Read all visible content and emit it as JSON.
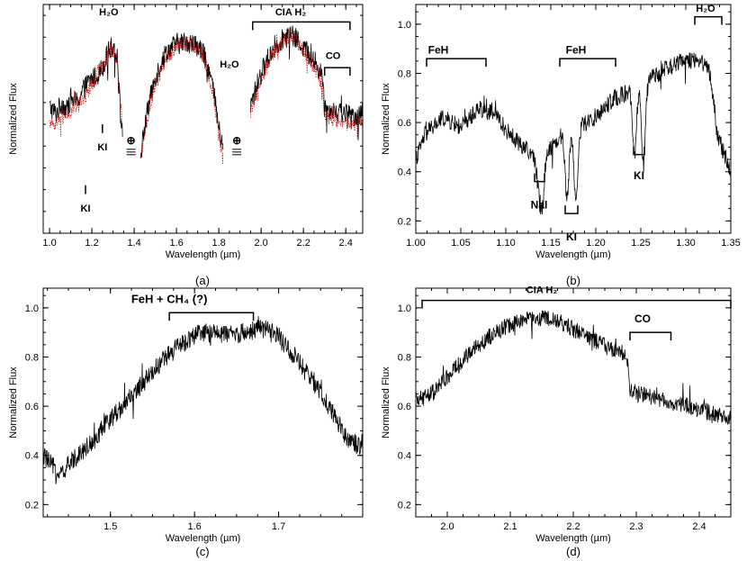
{
  "figure": {
    "colors": {
      "observed": "#000000",
      "model": "#d00000"
    }
  },
  "chart_data": [
    {
      "id": "a",
      "type": "line",
      "panel_label": "(a)",
      "xlabel": "Wavelength (µm)",
      "ylabel": "Normalized Flux",
      "xlim": [
        0.97,
        2.48
      ],
      "ylim": [
        0.0,
        1.05
      ],
      "y_tick_labels": false,
      "xticks": [
        1.0,
        1.2,
        1.4,
        1.6,
        1.8,
        2.0,
        2.2,
        2.4
      ],
      "xtick_labels": [
        "1.0",
        "1.2",
        "1.4",
        "1.6",
        "1.8",
        "2.0",
        "2.2",
        "2.4"
      ],
      "segments": [
        [
          1.0,
          1.345
        ],
        [
          1.43,
          1.82
        ],
        [
          1.95,
          2.48
        ]
      ],
      "series": [
        {
          "name": "observed",
          "style": "solid",
          "knots": [
            [
              1.0,
              0.58
            ],
            [
              1.03,
              0.55
            ],
            [
              1.06,
              0.6
            ],
            [
              1.08,
              0.56
            ],
            [
              1.1,
              0.62
            ],
            [
              1.13,
              0.6
            ],
            [
              1.16,
              0.66
            ],
            [
              1.19,
              0.7
            ],
            [
              1.22,
              0.72
            ],
            [
              1.25,
              0.76
            ],
            [
              1.28,
              0.84
            ],
            [
              1.3,
              0.86
            ],
            [
              1.32,
              0.82
            ],
            [
              1.335,
              0.55
            ],
            [
              1.345,
              0.45
            ],
            [
              1.43,
              0.35
            ],
            [
              1.46,
              0.55
            ],
            [
              1.5,
              0.72
            ],
            [
              1.55,
              0.83
            ],
            [
              1.6,
              0.87
            ],
            [
              1.65,
              0.88
            ],
            [
              1.7,
              0.86
            ],
            [
              1.74,
              0.8
            ],
            [
              1.77,
              0.68
            ],
            [
              1.8,
              0.48
            ],
            [
              1.82,
              0.38
            ],
            [
              1.95,
              0.58
            ],
            [
              1.98,
              0.68
            ],
            [
              2.02,
              0.78
            ],
            [
              2.06,
              0.85
            ],
            [
              2.1,
              0.89
            ],
            [
              2.14,
              0.91
            ],
            [
              2.18,
              0.88
            ],
            [
              2.22,
              0.83
            ],
            [
              2.26,
              0.77
            ],
            [
              2.29,
              0.72
            ],
            [
              2.3,
              0.58
            ],
            [
              2.35,
              0.56
            ],
            [
              2.4,
              0.55
            ],
            [
              2.44,
              0.54
            ],
            [
              2.48,
              0.55
            ]
          ],
          "noise": 0.05
        },
        {
          "name": "model",
          "style": "dotted",
          "knots": [
            [
              1.0,
              0.5
            ],
            [
              1.05,
              0.52
            ],
            [
              1.1,
              0.56
            ],
            [
              1.15,
              0.6
            ],
            [
              1.2,
              0.68
            ],
            [
              1.25,
              0.77
            ],
            [
              1.28,
              0.82
            ],
            [
              1.3,
              0.84
            ],
            [
              1.32,
              0.8
            ],
            [
              1.335,
              0.6
            ],
            [
              1.345,
              0.45
            ],
            [
              1.43,
              0.35
            ],
            [
              1.46,
              0.52
            ],
            [
              1.5,
              0.68
            ],
            [
              1.55,
              0.8
            ],
            [
              1.6,
              0.86
            ],
            [
              1.65,
              0.87
            ],
            [
              1.7,
              0.85
            ],
            [
              1.74,
              0.78
            ],
            [
              1.77,
              0.65
            ],
            [
              1.8,
              0.45
            ],
            [
              1.82,
              0.34
            ],
            [
              1.95,
              0.55
            ],
            [
              1.98,
              0.65
            ],
            [
              2.02,
              0.75
            ],
            [
              2.06,
              0.83
            ],
            [
              2.1,
              0.88
            ],
            [
              2.14,
              0.9
            ],
            [
              2.18,
              0.87
            ],
            [
              2.22,
              0.81
            ],
            [
              2.26,
              0.74
            ],
            [
              2.29,
              0.68
            ],
            [
              2.3,
              0.54
            ],
            [
              2.35,
              0.52
            ],
            [
              2.4,
              0.51
            ],
            [
              2.44,
              0.5
            ],
            [
              2.48,
              0.51
            ]
          ],
          "noise": 0.035
        }
      ],
      "annotations": [
        {
          "text": "H₂O",
          "x": 1.28,
          "y": 1.0,
          "size": 11,
          "type": "label"
        },
        {
          "text": "H₂O",
          "x": 1.85,
          "y": 0.76,
          "size": 11,
          "type": "label"
        },
        {
          "text": "CIA H₂",
          "x": 2.14,
          "y": 1.0,
          "size": 11,
          "type": "bracket",
          "x1": 1.96,
          "x2": 2.42,
          "yline": 0.97,
          "tick": "down"
        },
        {
          "text": "CO",
          "x": 2.34,
          "y": 0.8,
          "size": 11,
          "type": "bracket",
          "x1": 2.3,
          "x2": 2.42,
          "yline": 0.76,
          "tick": "down"
        },
        {
          "text": "KI",
          "x": 1.25,
          "y": 0.38,
          "size": 11,
          "type": "marker",
          "mx": 1.25,
          "my1": 0.46,
          "my2": 0.5
        },
        {
          "text": "KI",
          "x": 1.17,
          "y": 0.1,
          "size": 11,
          "type": "marker",
          "mx": 1.17,
          "my1": 0.18,
          "my2": 0.22
        },
        {
          "text": "⊕",
          "x": 1.385,
          "y": 0.41,
          "size": 12,
          "type": "telluric"
        },
        {
          "text": "⊕",
          "x": 1.885,
          "y": 0.41,
          "size": 12,
          "type": "telluric"
        }
      ]
    },
    {
      "id": "b",
      "type": "line",
      "panel_label": "(b)",
      "xlabel": "Wavelength (µm)",
      "ylabel": "Normalized Flux",
      "xlim": [
        1.0,
        1.35
      ],
      "ylim": [
        0.15,
        1.08
      ],
      "yticks": [
        0.2,
        0.4,
        0.6,
        0.8,
        1.0
      ],
      "ytick_labels": [
        "0.2",
        "0.4",
        "0.6",
        "0.8",
        "1.0"
      ],
      "xticks": [
        1.0,
        1.05,
        1.1,
        1.15,
        1.2,
        1.25,
        1.3,
        1.35
      ],
      "xtick_labels": [
        "1.00",
        "1.05",
        "1.10",
        "1.15",
        "1.20",
        "1.25",
        "1.30",
        "1.35"
      ],
      "segments": [
        [
          1.0,
          1.35
        ]
      ],
      "series": [
        {
          "name": "observed",
          "style": "solid",
          "knots": [
            [
              1.0,
              0.45
            ],
            [
              1.01,
              0.55
            ],
            [
              1.03,
              0.62
            ],
            [
              1.05,
              0.58
            ],
            [
              1.07,
              0.66
            ],
            [
              1.09,
              0.63
            ],
            [
              1.1,
              0.57
            ],
            [
              1.12,
              0.5
            ],
            [
              1.135,
              0.45
            ],
            [
              1.15,
              0.5
            ],
            [
              1.165,
              0.56
            ],
            [
              1.18,
              0.58
            ],
            [
              1.2,
              0.62
            ],
            [
              1.22,
              0.7
            ],
            [
              1.235,
              0.72
            ],
            [
              1.25,
              0.75
            ],
            [
              1.27,
              0.8
            ],
            [
              1.29,
              0.84
            ],
            [
              1.31,
              0.86
            ],
            [
              1.325,
              0.83
            ],
            [
              1.33,
              0.72
            ],
            [
              1.335,
              0.55
            ],
            [
              1.345,
              0.45
            ],
            [
              1.35,
              0.4
            ]
          ],
          "dips": [
            [
              1.168,
              0.27,
              0.003
            ],
            [
              1.178,
              0.3,
              0.003
            ],
            [
              1.243,
              0.28,
              0.003
            ],
            [
              1.253,
              0.33,
              0.003
            ],
            [
              1.138,
              0.14,
              0.004
            ],
            [
              1.141,
              0.12,
              0.003
            ]
          ],
          "noise": 0.035
        }
      ],
      "annotations": [
        {
          "text": "FeH",
          "x": 1.025,
          "y": 0.88,
          "size": 12,
          "type": "bracket",
          "x1": 1.012,
          "x2": 1.078,
          "yline": 0.86,
          "tick": "down"
        },
        {
          "text": "FeH",
          "x": 1.178,
          "y": 0.88,
          "size": 12,
          "type": "bracket",
          "x1": 1.16,
          "x2": 1.222,
          "yline": 0.86,
          "tick": "down"
        },
        {
          "text": "H₂O",
          "x": 1.322,
          "y": 1.05,
          "size": 11,
          "type": "bracket",
          "x1": 1.31,
          "x2": 1.34,
          "yline": 1.03,
          "tick": "down"
        },
        {
          "text": "NaI",
          "x": 1.137,
          "y": 0.25,
          "size": 12,
          "type": "bracket",
          "x1": 1.132,
          "x2": 1.143,
          "yline": 0.36,
          "tick": "up"
        },
        {
          "text": "KI",
          "x": 1.173,
          "y": 0.12,
          "size": 12,
          "type": "bracket",
          "x1": 1.166,
          "x2": 1.18,
          "yline": 0.23,
          "tick": "up"
        },
        {
          "text": "KI",
          "x": 1.248,
          "y": 0.37,
          "size": 12,
          "type": "bracket",
          "x1": 1.242,
          "x2": 1.254,
          "yline": 0.47,
          "tick": "up"
        }
      ]
    },
    {
      "id": "c",
      "type": "line",
      "panel_label": "(c)",
      "xlabel": "Wavelength (µm)",
      "ylabel": "Normalized Flux",
      "xlim": [
        1.42,
        1.8
      ],
      "ylim": [
        0.15,
        1.08
      ],
      "yticks": [
        0.2,
        0.4,
        0.6,
        0.8,
        1.0
      ],
      "ytick_labels": [
        "0.2",
        "0.4",
        "0.6",
        "0.8",
        "1.0"
      ],
      "xticks": [
        1.5,
        1.6,
        1.7
      ],
      "xtick_labels": [
        "1.5",
        "1.6",
        "1.7"
      ],
      "segments": [
        [
          1.42,
          1.8
        ]
      ],
      "series": [
        {
          "name": "observed",
          "style": "solid",
          "knots": [
            [
              1.42,
              0.4
            ],
            [
              1.44,
              0.32
            ],
            [
              1.46,
              0.4
            ],
            [
              1.48,
              0.46
            ],
            [
              1.5,
              0.55
            ],
            [
              1.52,
              0.62
            ],
            [
              1.54,
              0.7
            ],
            [
              1.56,
              0.78
            ],
            [
              1.58,
              0.84
            ],
            [
              1.6,
              0.89
            ],
            [
              1.62,
              0.9
            ],
            [
              1.64,
              0.89
            ],
            [
              1.66,
              0.9
            ],
            [
              1.68,
              0.92
            ],
            [
              1.7,
              0.88
            ],
            [
              1.72,
              0.8
            ],
            [
              1.74,
              0.7
            ],
            [
              1.76,
              0.6
            ],
            [
              1.78,
              0.48
            ],
            [
              1.8,
              0.42
            ]
          ],
          "noise": 0.04
        }
      ],
      "annotations": [
        {
          "text": "FeH + CH₄ (?)",
          "x": 1.57,
          "y": 1.02,
          "size": 13,
          "type": "bracket",
          "x1": 1.57,
          "x2": 1.67,
          "yline": 0.98,
          "tick": "down"
        }
      ]
    },
    {
      "id": "d",
      "type": "line",
      "panel_label": "(d)",
      "xlabel": "Wavelength (µm)",
      "ylabel": "Normalized Flux",
      "xlim": [
        1.95,
        2.45
      ],
      "ylim": [
        0.15,
        1.08
      ],
      "yticks": [
        0.2,
        0.4,
        0.6,
        0.8,
        1.0
      ],
      "ytick_labels": [
        "0.2",
        "0.4",
        "0.6",
        "0.8",
        "1.0"
      ],
      "xticks": [
        2.0,
        2.1,
        2.2,
        2.3,
        2.4
      ],
      "xtick_labels": [
        "2.0",
        "2.1",
        "2.2",
        "2.3",
        "2.4"
      ],
      "segments": [
        [
          1.95,
          2.45
        ]
      ],
      "series": [
        {
          "name": "observed",
          "style": "solid",
          "knots": [
            [
              1.95,
              0.62
            ],
            [
              1.98,
              0.66
            ],
            [
              2.0,
              0.72
            ],
            [
              2.03,
              0.8
            ],
            [
              2.06,
              0.87
            ],
            [
              2.09,
              0.92
            ],
            [
              2.12,
              0.95
            ],
            [
              2.15,
              0.96
            ],
            [
              2.18,
              0.94
            ],
            [
              2.21,
              0.9
            ],
            [
              2.24,
              0.86
            ],
            [
              2.27,
              0.82
            ],
            [
              2.285,
              0.8
            ],
            [
              2.29,
              0.66
            ],
            [
              2.32,
              0.64
            ],
            [
              2.35,
              0.62
            ],
            [
              2.38,
              0.6
            ],
            [
              2.41,
              0.58
            ],
            [
              2.44,
              0.56
            ],
            [
              2.45,
              0.55
            ]
          ],
          "noise": 0.035
        }
      ],
      "annotations": [
        {
          "text": "CIA H₂",
          "x": 2.15,
          "y": 1.06,
          "size": 11,
          "type": "bracket",
          "x1": 1.96,
          "x2": 2.45,
          "yline": 1.03,
          "tick": "down"
        },
        {
          "text": "CO",
          "x": 2.31,
          "y": 0.94,
          "size": 12,
          "type": "bracket",
          "x1": 2.29,
          "x2": 2.355,
          "yline": 0.9,
          "tick": "down"
        }
      ]
    }
  ]
}
